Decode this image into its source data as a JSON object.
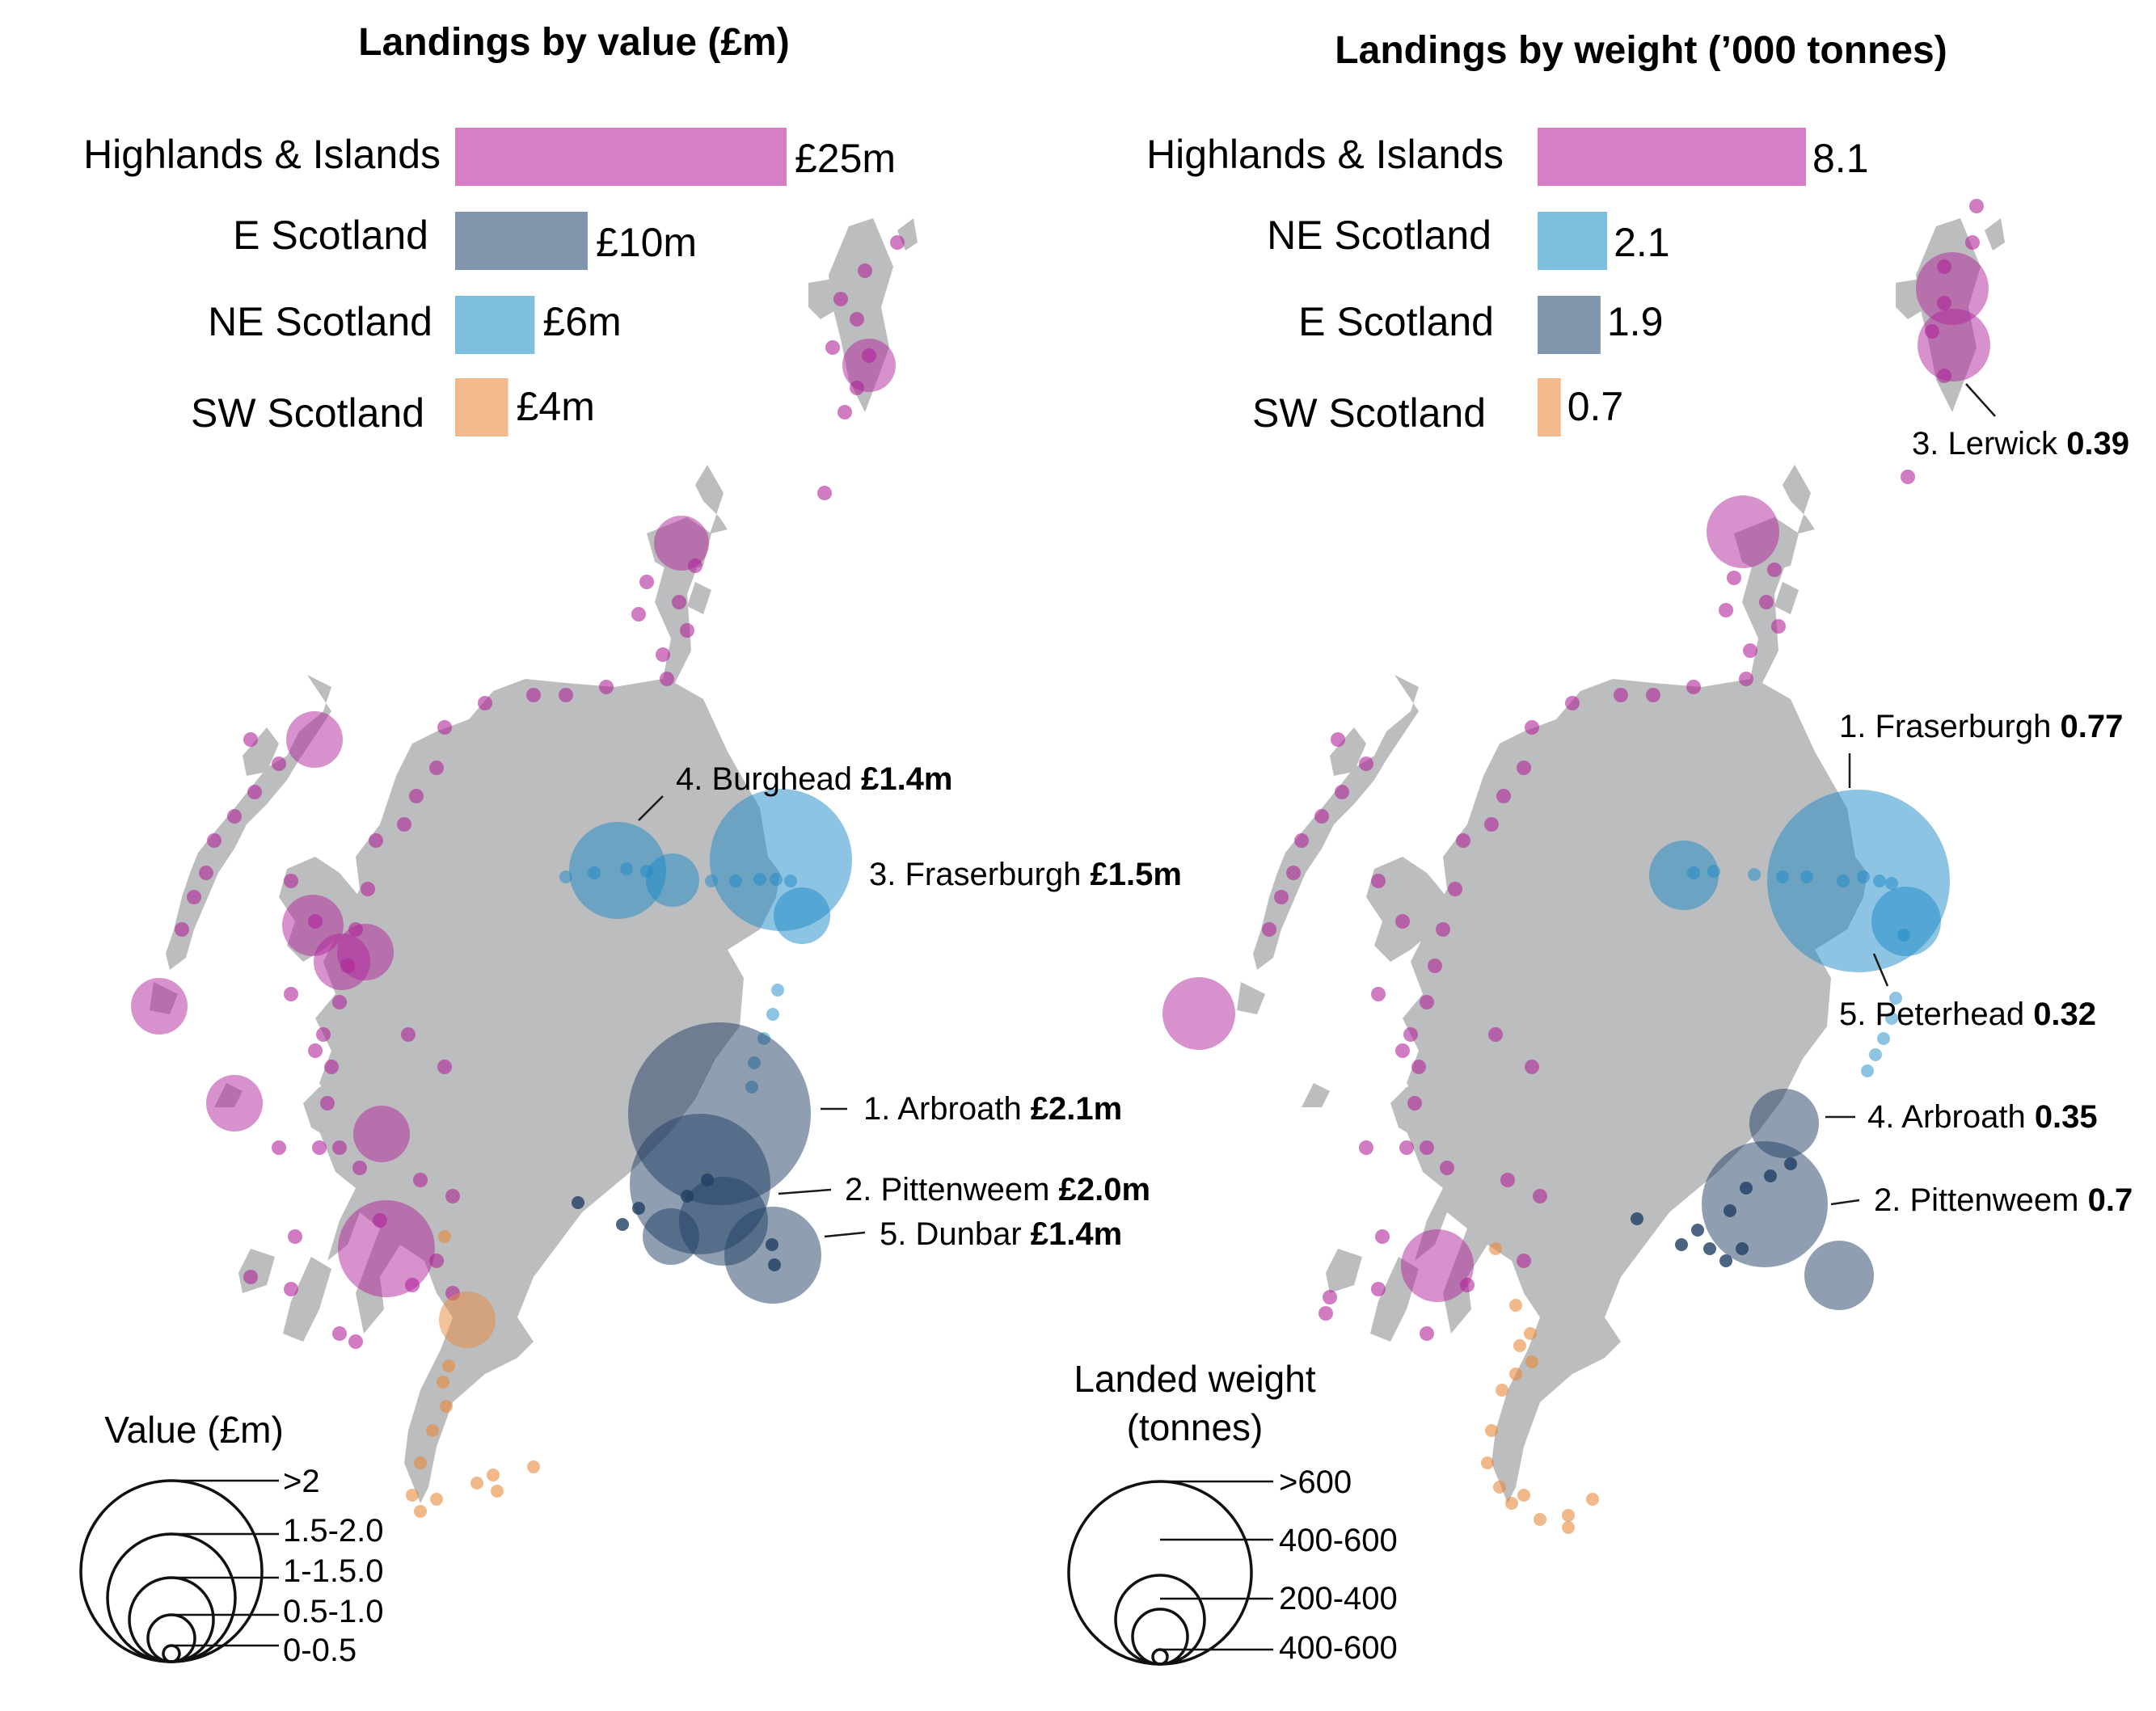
{
  "value_panel": {
    "title": "Landings by value (£m)",
    "bars": [
      {
        "region": "Highlands & Islands",
        "value": 25,
        "label": "£25m",
        "color": "#d47fc6"
      },
      {
        "region": "E Scotland",
        "value": 10,
        "label": "£10m",
        "color": "#7f96ad"
      },
      {
        "region": "NE Scotland",
        "value": 6,
        "label": "£6m",
        "color": "#7ebfe0"
      },
      {
        "region": "SW Scotland",
        "value": 4,
        "label": "£4m",
        "color": "#f2b98c"
      }
    ],
    "callouts": [
      {
        "text": "4. Burghead",
        "value": "£1.4m"
      },
      {
        "text": "3. Fraserburgh",
        "value": "£1.5m"
      },
      {
        "text": "1. Arbroath",
        "value": "£2.1m"
      },
      {
        "text": "2. Pittenweem",
        "value": "£2.0m"
      },
      {
        "text": "5. Dunbar",
        "value": "£1.4m"
      }
    ],
    "legend": {
      "title": "Value (£m)",
      "labels": [
        ">2",
        "1.5-2.0",
        "1-1.5.0",
        "0.5-1.0",
        "0-0.5"
      ]
    }
  },
  "weight_panel": {
    "title": "Landings by weight (’000 tonnes)",
    "bars": [
      {
        "region": "Highlands & Islands",
        "value": 8.1,
        "label": "8.1",
        "color": "#d47fc6"
      },
      {
        "region": "NE Scotland",
        "value": 2.1,
        "label": "2.1",
        "color": "#7ebfe0"
      },
      {
        "region": "E Scotland",
        "value": 1.9,
        "label": "1.9",
        "color": "#7f96ad"
      },
      {
        "region": "SW Scotland",
        "value": 0.7,
        "label": "0.7",
        "color": "#f2b98c"
      }
    ],
    "callouts": [
      {
        "text": "3. Lerwick",
        "value": "0.39"
      },
      {
        "text": "1. Fraserburgh",
        "value": "0.77"
      },
      {
        "text": "5. Peterhead",
        "value": "0.32"
      },
      {
        "text": "4. Arbroath",
        "value": "0.35"
      },
      {
        "text": "2. Pittenweem",
        "value": "0.7"
      }
    ],
    "legend": {
      "title_line1": "Landed weight",
      "title_line2": "(tonnes)",
      "labels": [
        ">600",
        "400-600",
        "200-400",
        "400-600"
      ]
    }
  },
  "colors": {
    "land": "#bcbdbf",
    "highlands_islands": "#b0239a",
    "ne_scotland": "#1c8ac8",
    "e_scotland": "#1f3e63",
    "sw_scotland": "#e8893a"
  }
}
